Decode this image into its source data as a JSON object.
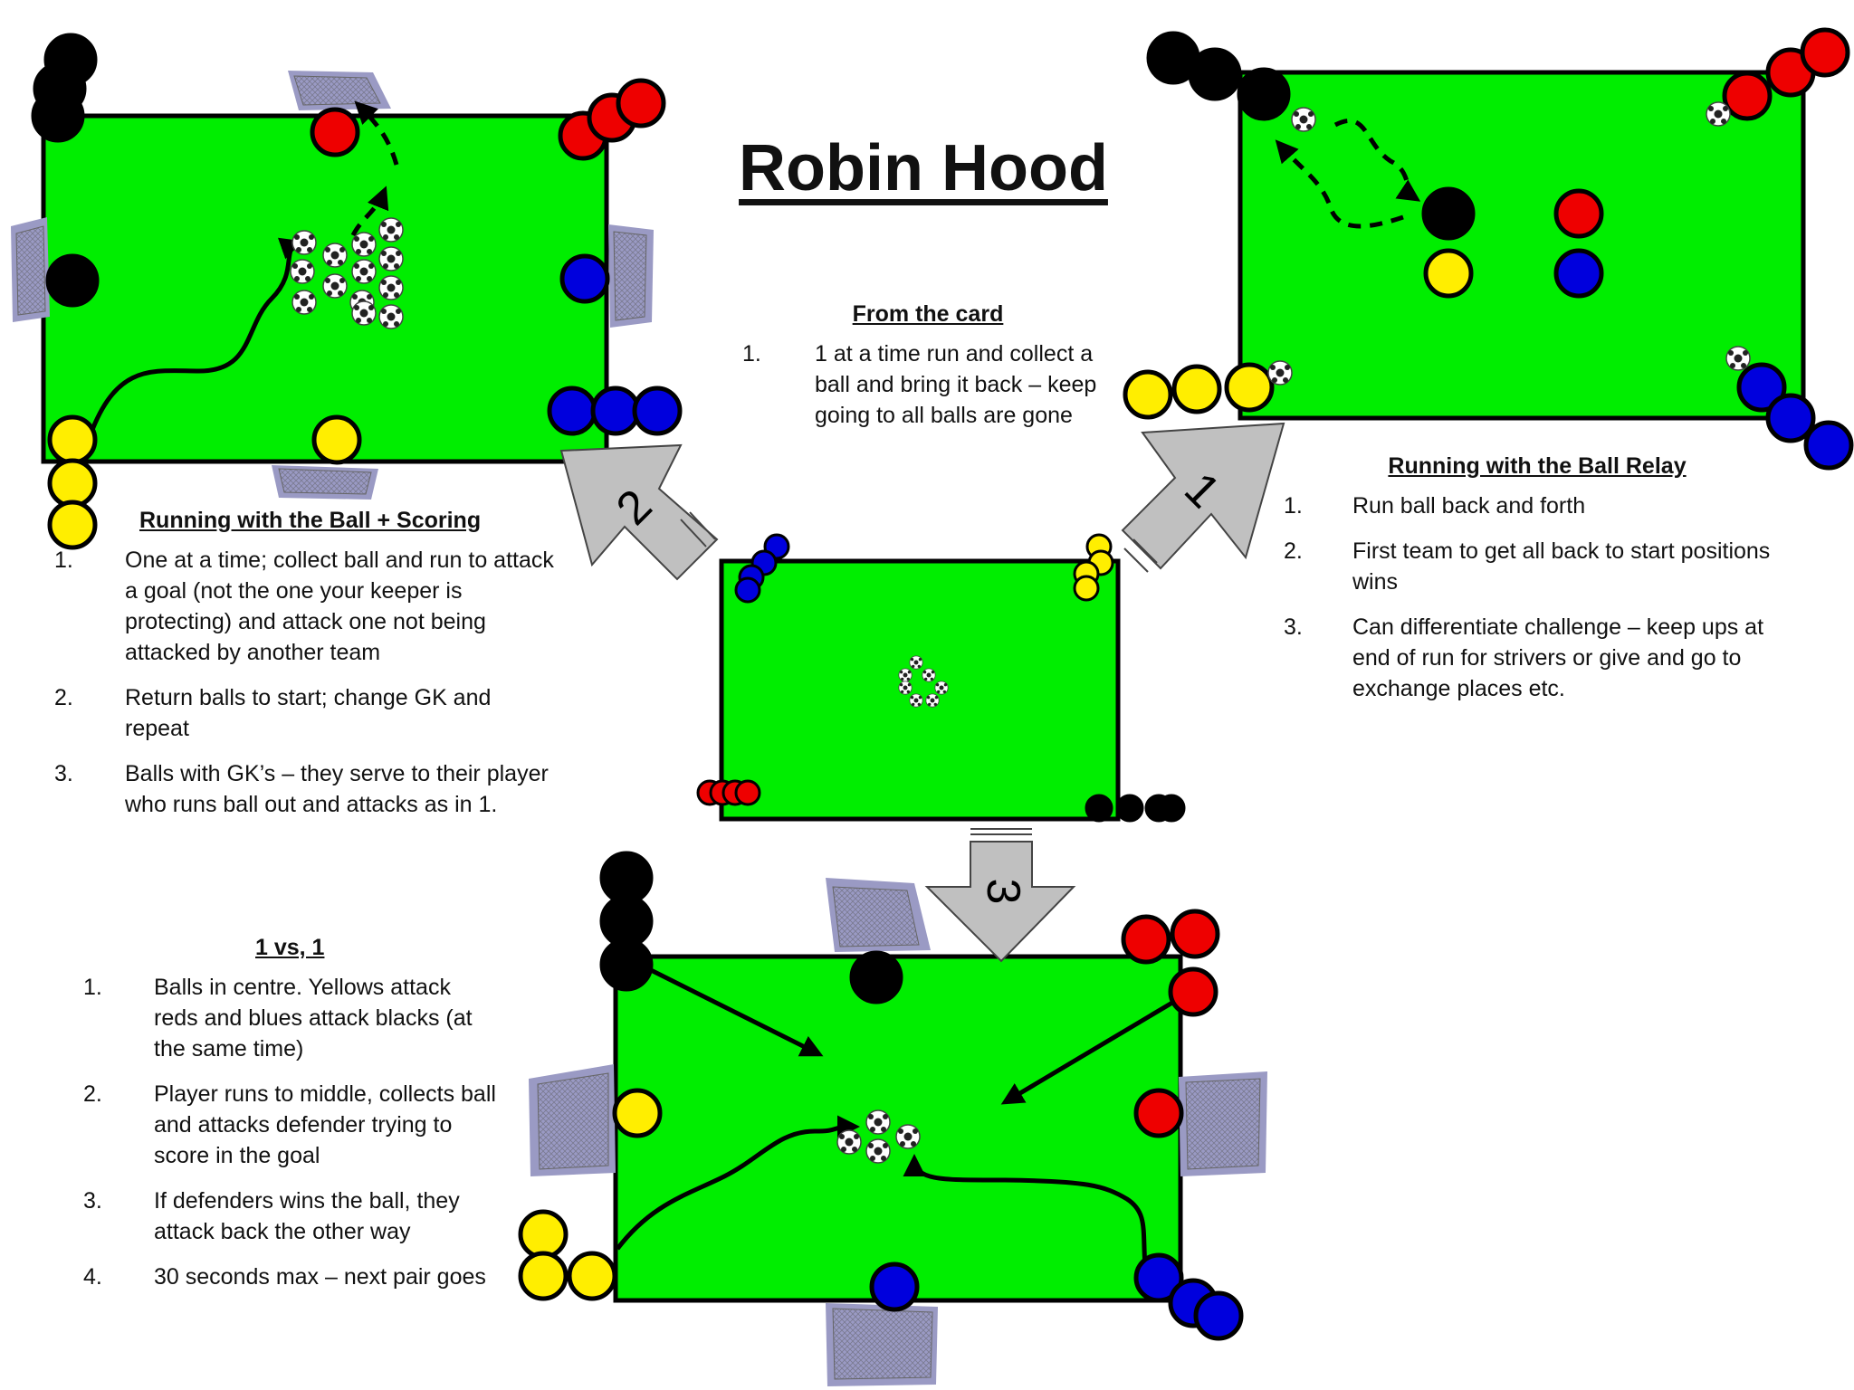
{
  "title": "Robin Hood",
  "colors": {
    "pitch": "#00ee00",
    "black_team": "#000000",
    "red_team": "#ee0000",
    "blue_team": "#0000dd",
    "yellow_team": "#ffee00",
    "arrow_fill": "#c0c0c0",
    "goal_frame": "#8f8fb8"
  },
  "icons": [
    "football-icon",
    "goal-net-icon",
    "player-marker-icon"
  ],
  "from_card": {
    "heading": "From the card",
    "items": [
      {
        "n": "1.",
        "text": "1 at a time run and collect a ball and bring it back – keep going to all balls are gone"
      }
    ]
  },
  "relay": {
    "heading": "Running with the Ball Relay",
    "items": [
      {
        "n": "1.",
        "text": "Run ball back and forth"
      },
      {
        "n": "2.",
        "text": "First team to get all back to start positions wins"
      },
      {
        "n": "3.",
        "text": "Can differentiate challenge – keep ups at end of run for strivers or give and go to exchange places etc."
      }
    ]
  },
  "scoring": {
    "heading": "Running with the Ball + Scoring",
    "items": [
      {
        "n": "1.",
        "text": "One at a time; collect ball and run to attack a goal (not the one your keeper is protecting) and attack one not being attacked by another team"
      },
      {
        "n": "2.",
        "text": "Return balls to start; change GK and repeat"
      },
      {
        "n": "3.",
        "text": "Balls with GK’s – they serve to their player who runs ball out and attacks as in 1."
      }
    ]
  },
  "one_v_one": {
    "heading": "1 vs, 1",
    "items": [
      {
        "n": "1.",
        "text": "Balls in centre. Yellows attack reds and blues attack blacks (at the same time)"
      },
      {
        "n": "2.",
        "text": "Player runs to middle, collects ball and attacks defender trying to score in the goal"
      },
      {
        "n": "3.",
        "text": "If defenders wins the ball, they attack back the other way"
      },
      {
        "n": "4.",
        "text": "30 seconds max – next pair goes"
      }
    ]
  },
  "arrows": {
    "one": "1",
    "two": "2",
    "three": "3"
  }
}
